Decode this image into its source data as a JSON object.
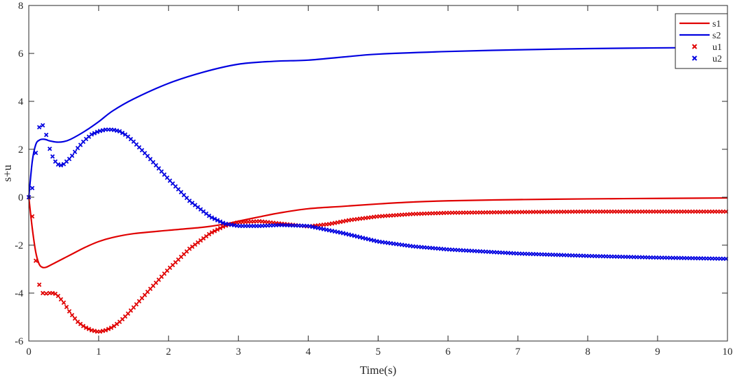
{
  "chart_data": {
    "type": "line",
    "title": "",
    "xlabel": "Time(s)",
    "ylabel": "s+u",
    "xlim": [
      0,
      10
    ],
    "ylim": [
      -6,
      8
    ],
    "xticks": [
      "0",
      "1",
      "2",
      "3",
      "4",
      "5",
      "6",
      "7",
      "8",
      "9",
      "10"
    ],
    "yticks": [
      "-6",
      "-4",
      "-2",
      "0",
      "2",
      "4",
      "6",
      "8"
    ],
    "grid": false,
    "legend_position": "top-right",
    "series": [
      {
        "name": "s1",
        "style": "line",
        "color": "#e00000",
        "x": [
          0,
          0.05,
          0.1,
          0.15,
          0.2,
          0.25,
          0.3,
          0.4,
          0.5,
          0.6,
          0.8,
          1.0,
          1.2,
          1.5,
          2.0,
          2.5,
          2.8,
          3.0,
          3.3,
          3.6,
          4.0,
          4.5,
          5.0,
          5.5,
          6.0,
          7.0,
          8.0,
          9.0,
          10.0
        ],
        "y": [
          0,
          -1.3,
          -2.3,
          -2.8,
          -2.93,
          -2.92,
          -2.85,
          -2.7,
          -2.55,
          -2.4,
          -2.1,
          -1.85,
          -1.68,
          -1.52,
          -1.38,
          -1.25,
          -1.12,
          -1.0,
          -0.82,
          -0.65,
          -0.48,
          -0.38,
          -0.28,
          -0.2,
          -0.15,
          -0.1,
          -0.07,
          -0.05,
          -0.03
        ]
      },
      {
        "name": "s2",
        "style": "line",
        "color": "#0000e0",
        "x": [
          0,
          0.05,
          0.1,
          0.15,
          0.2,
          0.25,
          0.3,
          0.4,
          0.5,
          0.6,
          0.8,
          1.0,
          1.2,
          1.5,
          2.0,
          2.5,
          3.0,
          3.5,
          4.0,
          4.5,
          5.0,
          6.0,
          7.0,
          8.0,
          9.0,
          10.0
        ],
        "y": [
          0,
          1.5,
          2.2,
          2.38,
          2.42,
          2.4,
          2.35,
          2.3,
          2.32,
          2.42,
          2.75,
          3.15,
          3.6,
          4.1,
          4.75,
          5.22,
          5.55,
          5.67,
          5.72,
          5.85,
          5.97,
          6.08,
          6.15,
          6.2,
          6.23,
          6.25
        ]
      },
      {
        "name": "u1",
        "style": "markers",
        "marker": "x",
        "color": "#e00000",
        "x": [
          0,
          0.05,
          0.1,
          0.15,
          0.2,
          0.25,
          0.3,
          0.35,
          0.4,
          0.5,
          0.6,
          0.7,
          0.8,
          0.9,
          1.0,
          1.1,
          1.2,
          1.3,
          1.4,
          1.5,
          1.7,
          2.0,
          2.3,
          2.6,
          2.8,
          3.0,
          3.3,
          3.6,
          4.0,
          4.3,
          4.6,
          5.0,
          5.5,
          6.0,
          7.0,
          8.0,
          9.0,
          10.0
        ],
        "y": [
          0,
          -0.8,
          -2.65,
          -3.65,
          -4.0,
          -4.02,
          -4.0,
          -4.0,
          -4.05,
          -4.4,
          -4.85,
          -5.2,
          -5.42,
          -5.55,
          -5.62,
          -5.55,
          -5.42,
          -5.2,
          -4.92,
          -4.6,
          -3.95,
          -3.0,
          -2.15,
          -1.5,
          -1.2,
          -1.05,
          -1.0,
          -1.1,
          -1.22,
          -1.12,
          -0.95,
          -0.8,
          -0.7,
          -0.65,
          -0.62,
          -0.6,
          -0.6,
          -0.6
        ]
      },
      {
        "name": "u2",
        "style": "markers",
        "marker": "x",
        "color": "#0000e0",
        "x": [
          0,
          0.05,
          0.1,
          0.15,
          0.2,
          0.25,
          0.3,
          0.35,
          0.4,
          0.45,
          0.5,
          0.6,
          0.7,
          0.8,
          0.9,
          1.0,
          1.1,
          1.2,
          1.3,
          1.4,
          1.5,
          1.7,
          2.0,
          2.3,
          2.6,
          2.8,
          3.0,
          3.3,
          3.6,
          4.0,
          4.5,
          5.0,
          5.5,
          6.0,
          7.0,
          8.0,
          9.0,
          10.0
        ],
        "y": [
          0,
          0.38,
          1.85,
          2.92,
          3.0,
          2.6,
          2.02,
          1.62,
          1.4,
          1.32,
          1.38,
          1.65,
          2.05,
          2.38,
          2.62,
          2.75,
          2.82,
          2.82,
          2.75,
          2.58,
          2.32,
          1.72,
          0.75,
          -0.15,
          -0.82,
          -1.1,
          -1.2,
          -1.2,
          -1.16,
          -1.2,
          -1.5,
          -1.85,
          -2.05,
          -2.18,
          -2.35,
          -2.45,
          -2.52,
          -2.57
        ]
      }
    ]
  }
}
